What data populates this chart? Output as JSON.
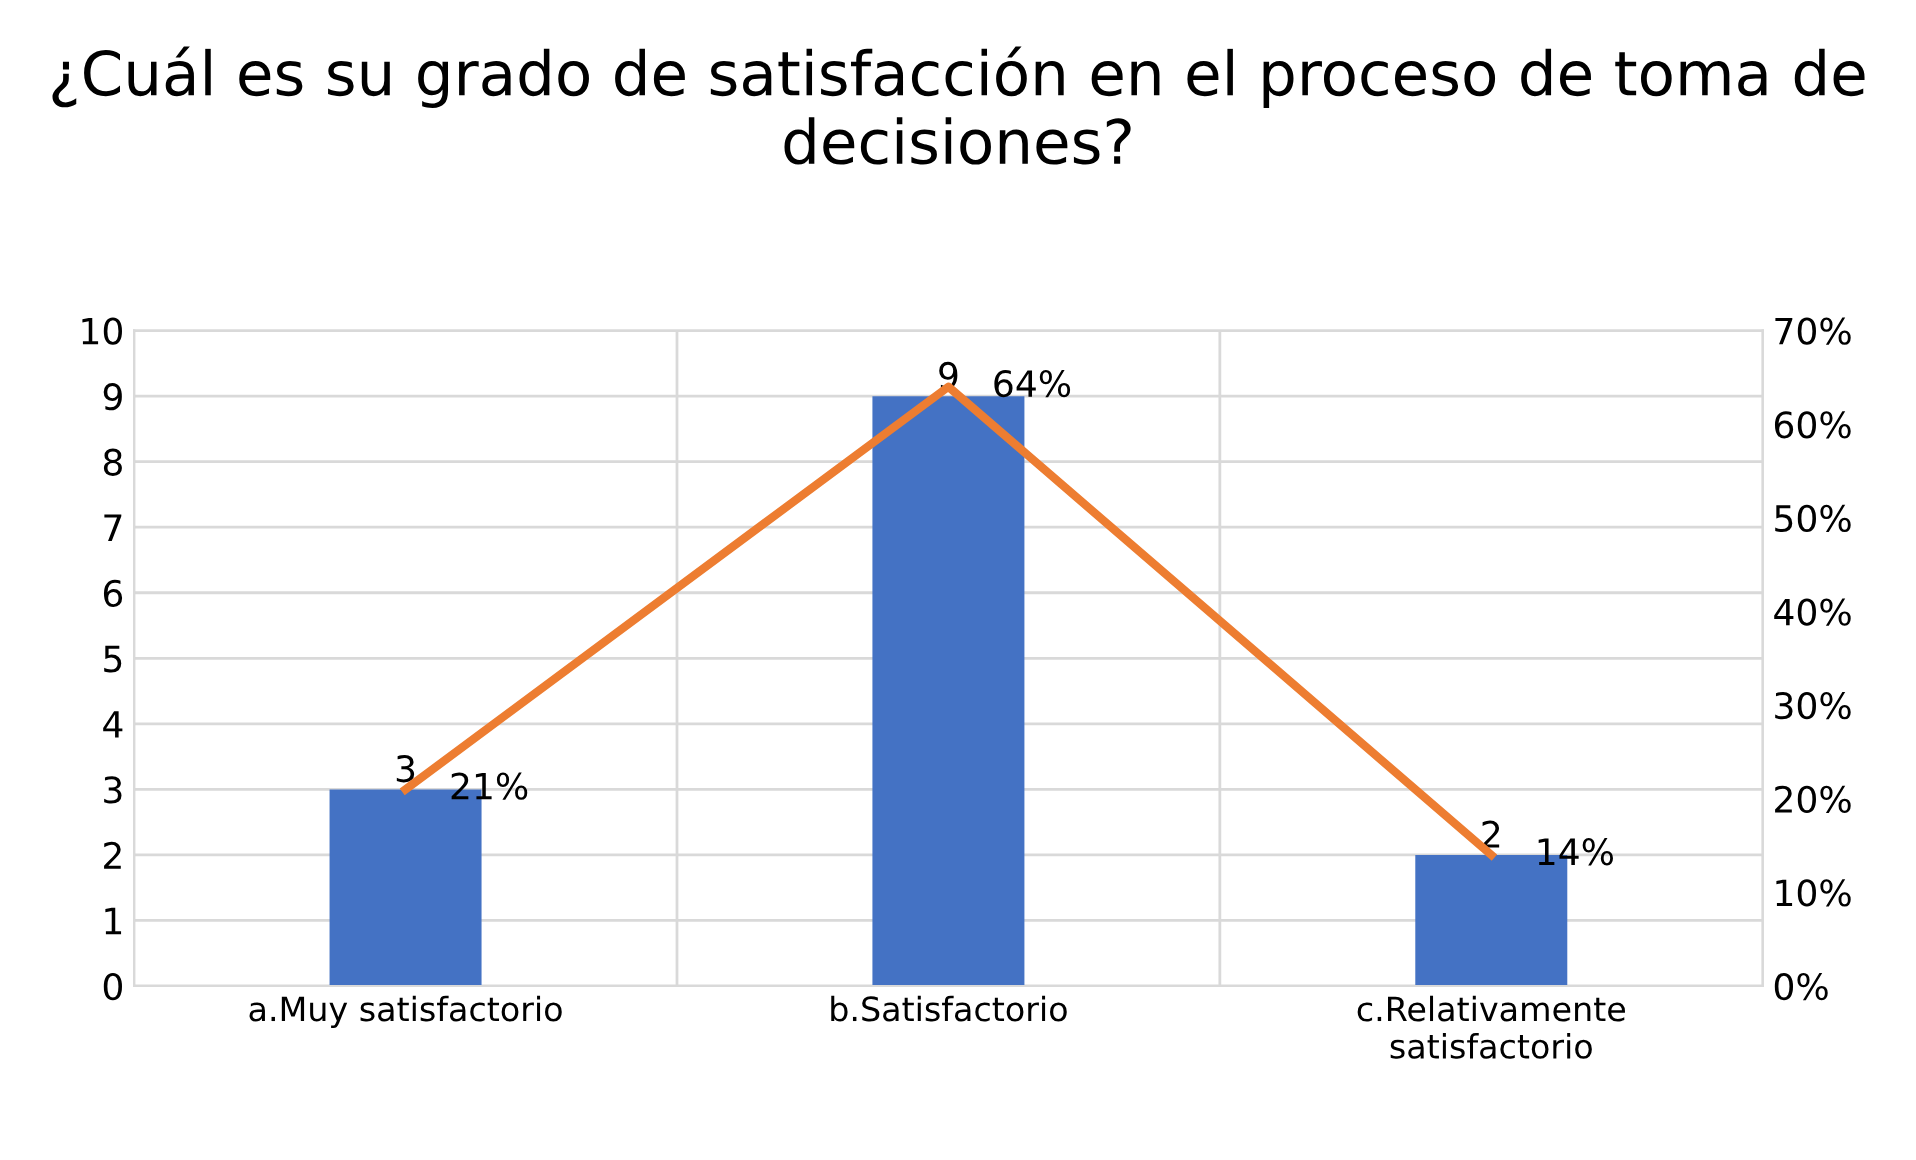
{
  "chart_data": {
    "type": "bar",
    "title": "¿Cuál es su grado de satisfacción en el proceso de toma de decisiones?",
    "categories": [
      "a.Muy satisfactorio",
      "b.Satisfactorio",
      "c.Relativamente satisfactorio"
    ],
    "series": [
      {
        "color": "#4472c4",
        "values": [
          3,
          9,
          2
        ],
        "value_labels": [
          "3",
          "9",
          "2"
        ]
      },
      {
        "type": "line",
        "axis": "y2",
        "color": "#ed7d31",
        "values": [
          21,
          64,
          14
        ],
        "value_labels": [
          "21%",
          "64%",
          "14%"
        ]
      }
    ],
    "ylim": [
      0,
      10
    ],
    "yticks": [
      0,
      1,
      2,
      3,
      4,
      5,
      6,
      7,
      8,
      9,
      10
    ],
    "y2lim": [
      0,
      70
    ],
    "y2ticks": [
      {
        "value": 0,
        "label": "0%"
      },
      {
        "value": 10,
        "label": "10%"
      },
      {
        "value": 20,
        "label": "20%"
      },
      {
        "value": 30,
        "label": "30%"
      },
      {
        "value": 40,
        "label": "40%"
      },
      {
        "value": 50,
        "label": "50%"
      },
      {
        "value": 60,
        "label": "60%"
      },
      {
        "value": 70,
        "label": "70%"
      }
    ],
    "grid": true,
    "legend": false,
    "marker": "none"
  }
}
